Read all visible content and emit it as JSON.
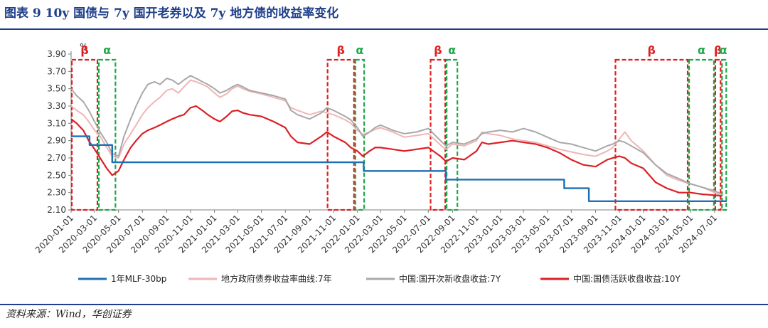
{
  "figure": {
    "title": "图表 9   10y 国债与 7y 国开老券以及 7y 地方债的收益率变化",
    "source": "资料来源：Wind，华创证券"
  },
  "colors": {
    "mlf": "#1f6fb5",
    "local": "#efb6b6",
    "cdb": "#a8a8a8",
    "tgb": "#dd1f26",
    "beta": "#e02020",
    "alpha": "#1fa84a",
    "frame": "#1f3f8a"
  },
  "chart_data": {
    "type": "line",
    "ylabel": "%",
    "ylim": [
      2.1,
      3.9
    ],
    "yticks": [
      "3.90",
      "3.70",
      "3.50",
      "3.30",
      "3.10",
      "2.90",
      "2.70",
      "2.50",
      "2.30",
      "2.10"
    ],
    "xlim": [
      "2020-01-01",
      "2024-08-01"
    ],
    "xticks": [
      "2020-01-01",
      "2020-03-01",
      "2020-05-01",
      "2020-07-01",
      "2020-09-01",
      "2020-11-01",
      "2021-01-01",
      "2021-03-01",
      "2021-05-01",
      "2021-07-01",
      "2021-09-01",
      "2021-11-01",
      "2022-01-01",
      "2022-03-01",
      "2022-05-01",
      "2022-07-01",
      "2022-09-01",
      "2022-11-01",
      "2023-01-01",
      "2023-03-01",
      "2023-05-01",
      "2023-07-01",
      "2023-09-01",
      "2023-11-01",
      "2024-01-01",
      "2024-03-01",
      "2024-05-01",
      "2024-07-01"
    ],
    "legend_position": "bottom",
    "series": [
      {
        "name": "1年MLF-30bp",
        "key": "mlf",
        "step": true,
        "x": [
          "2020-01-01",
          "2020-02-17",
          "2020-04-15",
          "2021-12-15",
          "2022-01-17",
          "2022-08-15",
          "2023-06-13",
          "2023-08-15",
          "2024-07-25",
          "2024-08-01"
        ],
        "y": [
          2.95,
          2.85,
          2.65,
          2.65,
          2.55,
          2.45,
          2.35,
          2.2,
          2.2,
          2.2
        ]
      },
      {
        "name": "地方政府债券收益率曲线:7年",
        "key": "local",
        "x": [
          "2020-01-01",
          "2020-01-15",
          "2020-02-01",
          "2020-02-15",
          "2020-03-01",
          "2020-03-15",
          "2020-04-01",
          "2020-04-15",
          "2020-05-01",
          "2020-05-15",
          "2020-06-01",
          "2020-06-15",
          "2020-07-01",
          "2020-07-15",
          "2020-08-01",
          "2020-08-15",
          "2020-09-01",
          "2020-09-15",
          "2020-10-01",
          "2020-10-15",
          "2020-11-01",
          "2020-11-15",
          "2020-12-01",
          "2020-12-15",
          "2021-01-01",
          "2021-01-15",
          "2021-02-01",
          "2021-02-15",
          "2021-03-01",
          "2021-03-15",
          "2021-04-01",
          "2021-05-01",
          "2021-06-01",
          "2021-07-01",
          "2021-07-15",
          "2021-08-01",
          "2021-09-01",
          "2021-10-01",
          "2021-10-15",
          "2021-11-01",
          "2021-12-01",
          "2021-12-15",
          "2022-01-01",
          "2022-01-15",
          "2022-02-01",
          "2022-02-15",
          "2022-03-01",
          "2022-04-01",
          "2022-05-01",
          "2022-06-01",
          "2022-07-01",
          "2022-08-01",
          "2022-08-15",
          "2022-09-01",
          "2022-10-01",
          "2022-11-01",
          "2022-11-15",
          "2022-12-01",
          "2023-01-01",
          "2023-02-01",
          "2023-03-01",
          "2023-04-01",
          "2023-05-01",
          "2023-06-01",
          "2023-07-01",
          "2023-08-01",
          "2023-09-01",
          "2023-10-01",
          "2023-10-15",
          "2023-11-01",
          "2023-11-15",
          "2023-12-01",
          "2024-01-01",
          "2024-02-01",
          "2024-03-01",
          "2024-04-01",
          "2024-05-01",
          "2024-06-01",
          "2024-07-01",
          "2024-07-20"
        ],
        "y": [
          3.3,
          3.25,
          3.2,
          3.12,
          3.02,
          2.95,
          2.82,
          2.72,
          2.7,
          2.86,
          2.98,
          3.08,
          3.2,
          3.28,
          3.35,
          3.4,
          3.48,
          3.5,
          3.45,
          3.52,
          3.6,
          3.58,
          3.55,
          3.52,
          3.45,
          3.4,
          3.44,
          3.5,
          3.53,
          3.5,
          3.47,
          3.44,
          3.4,
          3.36,
          3.28,
          3.25,
          3.2,
          3.24,
          3.22,
          3.2,
          3.14,
          3.1,
          3.02,
          2.97,
          3.0,
          3.03,
          3.05,
          3.0,
          2.94,
          2.96,
          2.98,
          2.85,
          2.8,
          2.86,
          2.84,
          2.9,
          3.0,
          2.98,
          2.96,
          2.92,
          2.9,
          2.88,
          2.84,
          2.8,
          2.77,
          2.74,
          2.72,
          2.78,
          2.82,
          2.92,
          3.0,
          2.9,
          2.78,
          2.62,
          2.5,
          2.44,
          2.4,
          2.36,
          2.3,
          2.26
        ]
      },
      {
        "name": "中国:国开次新收盘收益:7Y",
        "key": "cdb",
        "x": [
          "2020-01-01",
          "2020-01-15",
          "2020-02-01",
          "2020-02-15",
          "2020-03-01",
          "2020-03-15",
          "2020-04-01",
          "2020-04-15",
          "2020-05-01",
          "2020-05-15",
          "2020-06-01",
          "2020-06-15",
          "2020-07-01",
          "2020-07-15",
          "2020-08-01",
          "2020-08-15",
          "2020-09-01",
          "2020-09-15",
          "2020-10-01",
          "2020-10-15",
          "2020-11-01",
          "2020-11-15",
          "2020-12-01",
          "2020-12-15",
          "2021-01-01",
          "2021-01-15",
          "2021-02-01",
          "2021-02-15",
          "2021-03-01",
          "2021-03-15",
          "2021-04-01",
          "2021-05-01",
          "2021-06-01",
          "2021-07-01",
          "2021-07-15",
          "2021-08-01",
          "2021-09-01",
          "2021-10-01",
          "2021-10-15",
          "2021-11-01",
          "2021-12-01",
          "2021-12-15",
          "2022-01-01",
          "2022-01-15",
          "2022-02-01",
          "2022-02-15",
          "2022-03-01",
          "2022-04-01",
          "2022-05-01",
          "2022-06-01",
          "2022-07-01",
          "2022-08-01",
          "2022-08-15",
          "2022-09-01",
          "2022-10-01",
          "2022-11-01",
          "2022-11-15",
          "2022-12-01",
          "2023-01-01",
          "2023-02-01",
          "2023-03-01",
          "2023-04-01",
          "2023-05-01",
          "2023-06-01",
          "2023-07-01",
          "2023-08-01",
          "2023-09-01",
          "2023-10-01",
          "2023-10-15",
          "2023-11-01",
          "2023-11-15",
          "2023-12-01",
          "2024-01-01",
          "2024-02-01",
          "2024-03-01",
          "2024-04-01",
          "2024-05-01",
          "2024-06-01",
          "2024-07-01",
          "2024-07-20"
        ],
        "y": [
          3.5,
          3.42,
          3.35,
          3.25,
          3.12,
          3.0,
          2.88,
          2.75,
          2.72,
          2.95,
          3.15,
          3.3,
          3.45,
          3.55,
          3.58,
          3.55,
          3.62,
          3.6,
          3.55,
          3.6,
          3.65,
          3.62,
          3.58,
          3.55,
          3.5,
          3.45,
          3.48,
          3.52,
          3.55,
          3.52,
          3.48,
          3.45,
          3.42,
          3.38,
          3.25,
          3.2,
          3.15,
          3.22,
          3.28,
          3.25,
          3.18,
          3.14,
          3.05,
          2.95,
          3.0,
          3.05,
          3.08,
          3.02,
          2.98,
          3.0,
          3.04,
          2.9,
          2.84,
          2.88,
          2.86,
          2.92,
          2.98,
          3.0,
          3.02,
          3.0,
          3.04,
          3.0,
          2.94,
          2.88,
          2.86,
          2.82,
          2.78,
          2.84,
          2.86,
          2.9,
          2.88,
          2.84,
          2.76,
          2.62,
          2.52,
          2.46,
          2.4,
          2.36,
          2.32,
          2.28
        ]
      },
      {
        "name": "中国:国债活跃收盘收益:10Y",
        "key": "tgb",
        "x": [
          "2020-01-01",
          "2020-01-15",
          "2020-02-01",
          "2020-02-15",
          "2020-03-01",
          "2020-03-15",
          "2020-04-01",
          "2020-04-15",
          "2020-05-01",
          "2020-05-15",
          "2020-06-01",
          "2020-06-15",
          "2020-07-01",
          "2020-07-15",
          "2020-08-01",
          "2020-08-15",
          "2020-09-01",
          "2020-09-15",
          "2020-10-01",
          "2020-10-15",
          "2020-11-01",
          "2020-11-15",
          "2020-12-01",
          "2020-12-15",
          "2021-01-01",
          "2021-01-15",
          "2021-02-01",
          "2021-02-15",
          "2021-03-01",
          "2021-03-15",
          "2021-04-01",
          "2021-05-01",
          "2021-06-01",
          "2021-07-01",
          "2021-07-15",
          "2021-08-01",
          "2021-09-01",
          "2021-10-01",
          "2021-10-15",
          "2021-11-01",
          "2021-12-01",
          "2021-12-15",
          "2022-01-01",
          "2022-01-15",
          "2022-02-01",
          "2022-02-15",
          "2022-03-01",
          "2022-04-01",
          "2022-05-01",
          "2022-06-01",
          "2022-07-01",
          "2022-08-01",
          "2022-08-15",
          "2022-09-01",
          "2022-10-01",
          "2022-11-01",
          "2022-11-15",
          "2022-12-01",
          "2023-01-01",
          "2023-02-01",
          "2023-03-01",
          "2023-04-01",
          "2023-05-01",
          "2023-06-01",
          "2023-07-01",
          "2023-08-01",
          "2023-09-01",
          "2023-10-01",
          "2023-10-15",
          "2023-11-01",
          "2023-11-15",
          "2023-12-01",
          "2024-01-01",
          "2024-02-01",
          "2024-03-01",
          "2024-04-01",
          "2024-05-01",
          "2024-06-01",
          "2024-07-01",
          "2024-07-20"
        ],
        "y": [
          3.15,
          3.1,
          3.02,
          2.9,
          2.8,
          2.7,
          2.58,
          2.5,
          2.55,
          2.68,
          2.82,
          2.9,
          2.98,
          3.02,
          3.05,
          3.08,
          3.12,
          3.15,
          3.18,
          3.2,
          3.28,
          3.3,
          3.25,
          3.2,
          3.15,
          3.12,
          3.18,
          3.24,
          3.25,
          3.22,
          3.2,
          3.18,
          3.12,
          3.05,
          2.95,
          2.88,
          2.86,
          2.95,
          3.0,
          2.95,
          2.88,
          2.82,
          2.78,
          2.72,
          2.78,
          2.82,
          2.82,
          2.8,
          2.78,
          2.8,
          2.82,
          2.72,
          2.66,
          2.7,
          2.68,
          2.78,
          2.88,
          2.86,
          2.88,
          2.9,
          2.88,
          2.86,
          2.82,
          2.76,
          2.68,
          2.62,
          2.6,
          2.68,
          2.7,
          2.72,
          2.7,
          2.64,
          2.58,
          2.42,
          2.35,
          2.3,
          2.3,
          2.28,
          2.27,
          2.26
        ]
      }
    ],
    "phases": [
      {
        "type": "β",
        "start": "2020-01-01",
        "end": "2020-03-10"
      },
      {
        "type": "α",
        "start": "2020-03-10",
        "end": "2020-04-25"
      },
      {
        "type": "β",
        "start": "2021-10-15",
        "end": "2021-12-25"
      },
      {
        "type": "α",
        "start": "2021-12-25",
        "end": "2022-01-20"
      },
      {
        "type": "β",
        "start": "2022-07-05",
        "end": "2022-08-15"
      },
      {
        "type": "α",
        "start": "2022-08-15",
        "end": "2022-09-15"
      },
      {
        "type": "β",
        "start": "2023-10-20",
        "end": "2024-04-25"
      },
      {
        "type": "α",
        "start": "2024-04-25",
        "end": "2024-07-01"
      },
      {
        "type": "β",
        "start": "2024-07-01",
        "end": "2024-07-18"
      },
      {
        "type": "α",
        "start": "2024-07-18",
        "end": "2024-08-05"
      }
    ]
  }
}
